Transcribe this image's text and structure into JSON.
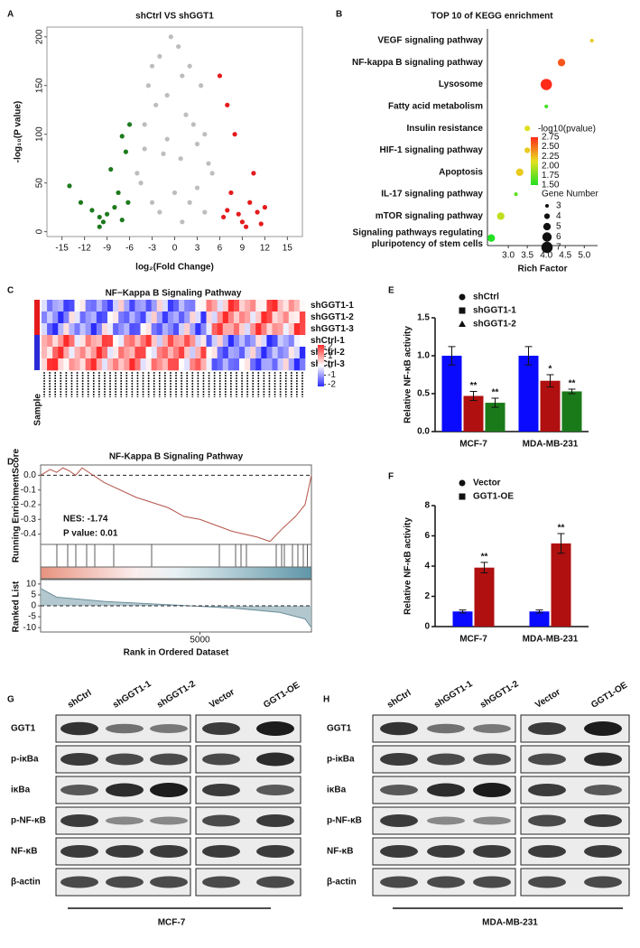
{
  "panel_labels": [
    "A",
    "B",
    "C",
    "D",
    "E",
    "F",
    "G",
    "H"
  ],
  "chart_data": [
    {
      "type": "scatter",
      "title": "shCtrl VS shGGT1",
      "x_label": "log₂(Fold Change)",
      "y_label": "-log₁₀(P value)",
      "xlim": [
        -17,
        17
      ],
      "ylim": [
        -5,
        210
      ],
      "xticks": [
        -15,
        -12,
        -9,
        -6,
        -3,
        0,
        3,
        6,
        9,
        12,
        15
      ],
      "yticks": [
        0,
        50,
        100,
        150,
        200
      ],
      "series": [
        {
          "color": "#1e7a1e",
          "x": [
            -14,
            -12.5,
            -11,
            -10,
            -9,
            -8.5,
            -8,
            -7,
            -6.5,
            -6,
            -10,
            -7.5,
            -9.5,
            -7,
            -6.2
          ],
          "y": [
            47,
            30,
            22,
            15,
            18,
            64,
            25,
            98,
            82,
            110,
            5,
            40,
            10,
            12,
            30
          ]
        },
        {
          "color": "#bdbdbd",
          "x": [
            -5,
            -4,
            -3.5,
            -3,
            -2.5,
            -2,
            -1,
            -0.5,
            0.5,
            1,
            1.5,
            2,
            2.5,
            3,
            3.5,
            4,
            5,
            -1.5,
            0,
            -4.5,
            4.5,
            2,
            -2,
            1,
            -3,
            -1,
            0.8,
            3,
            -4,
            4
          ],
          "y": [
            60,
            110,
            150,
            170,
            130,
            180,
            140,
            200,
            190,
            160,
            120,
            170,
            110,
            90,
            150,
            100,
            60,
            80,
            40,
            50,
            70,
            30,
            20,
            10,
            30,
            95,
            75,
            45,
            85,
            20
          ]
        },
        {
          "color": "#e41a1c",
          "x": [
            6,
            7,
            8,
            9,
            10,
            11,
            12,
            7.5,
            6.5,
            9.5,
            10.5,
            8.5,
            11.5,
            7
          ],
          "y": [
            160,
            130,
            100,
            10,
            30,
            20,
            25,
            40,
            15,
            5,
            60,
            18,
            8,
            22
          ]
        }
      ]
    },
    {
      "type": "dot",
      "title": "TOP 10 of KEGG enrichment",
      "x_label": "Rich Factor",
      "categories": [
        "VEGF signaling pathway",
        "NF-kappa B signaling pathway",
        "Lysosome",
        "Fatty acid metabolism",
        "Insulin resistance",
        "HIF-1 signaling pathway",
        "Apoptosis",
        "IL-17 signaling pathway",
        "mTOR signaling pathway",
        "Signaling pathways regulating\npluripotency of stem cells"
      ],
      "x": [
        5.2,
        4.4,
        4.0,
        4.0,
        3.5,
        3.5,
        3.3,
        3.2,
        2.8,
        2.55
      ],
      "gene_number": [
        3,
        5,
        7,
        3,
        4,
        4,
        5,
        3,
        5,
        5
      ],
      "neg_log10_p": [
        2.2,
        2.6,
        2.75,
        1.6,
        2.1,
        2.2,
        2.2,
        1.7,
        2.0,
        1.5
      ],
      "highlight_index": 1,
      "highlight_color": "#e41a1c",
      "xlim": [
        2.45,
        5.35
      ],
      "xticks": [
        {
          "value": 3,
          "label": "3.0"
        },
        3.5,
        {
          "value": 4,
          "label": "4.0"
        },
        4.5,
        {
          "value": 5,
          "label": "5.0"
        }
      ],
      "color_title": "-log10(pvalue)",
      "color_lim": [
        1.5,
        2.75
      ],
      "color_ticks": [
        2.75,
        {
          "value": 2.5,
          "label": "2.50"
        },
        2.25,
        {
          "value": 2,
          "label": "2.00"
        },
        1.75,
        {
          "value": 1.5,
          "label": "1.50"
        }
      ],
      "colormap": [
        "#22e022",
        "#e6e020",
        "#ff2a1a"
      ],
      "size_title": "Gene Number",
      "size_ticks": [
        3,
        4,
        5,
        6,
        7
      ]
    },
    {
      "type": "heatmap",
      "title": "NF−Kappa B Signaling Pathway",
      "rows": [
        "shGGT1-1",
        "shGGT1-2",
        "shGGT1-3",
        "shCtrl-1",
        "shCtrl-2",
        "shCtrl-3"
      ],
      "group_colors": [
        "#e41a1c",
        "#e41a1c",
        "#e41a1c",
        "#2b2bd6",
        "#2b2bd6",
        "#2b2bd6"
      ],
      "sample_label": "Sample",
      "color_ticks": [
        2,
        1,
        0,
        -1,
        -2
      ],
      "colormap": [
        "#2b2bff",
        "#ffffff",
        "#ff2b2b"
      ]
    },
    {
      "type": "gsea",
      "title": "NF-Kappa B Signaling Pathway",
      "y_label": "Running EnrichmentScore",
      "x_label": "Rank in Ordered Dataset",
      "ranked_label": "Ranked List",
      "nes_text": "NES: -1.74",
      "p_text": "P value: 0.01",
      "line_color": "#b5544a",
      "x": [
        0,
        300,
        500,
        700,
        900,
        1100,
        1300,
        2000,
        3000,
        4000,
        4500,
        5000,
        6000,
        6800,
        7200,
        7600,
        8000,
        8300,
        8500
      ],
      "es": [
        0,
        0.04,
        0.02,
        0.05,
        0.03,
        0,
        0.05,
        -0.05,
        -0.15,
        -0.22,
        -0.28,
        -0.3,
        -0.38,
        -0.42,
        -0.45,
        -0.36,
        -0.28,
        -0.2,
        0
      ],
      "xlim": [
        0,
        8500
      ],
      "xticks": [
        5000
      ],
      "ylim": [
        -0.47,
        0.07
      ],
      "yticks": [
        {
          "value": 0,
          "label": "0.0"
        },
        -0.1,
        -0.2,
        -0.3,
        -0.4
      ],
      "ranked_x": [
        0,
        500,
        2000,
        4000,
        6000,
        7500,
        8300,
        8500
      ],
      "ranked_y": [
        8,
        4,
        2,
        0.5,
        -1,
        -3,
        -6,
        -10
      ],
      "ranked_ylim": [
        -12,
        12
      ],
      "ranked_yticks": [
        10,
        5,
        0,
        -5,
        -10
      ]
    },
    {
      "type": "bar",
      "y_label": "Relative NF-κB activity",
      "categories": [
        "MCF-7",
        "MDA-MB-231"
      ],
      "ylim": [
        0,
        1.5
      ],
      "yticks": [
        {
          "value": 0,
          "label": "0.0"
        },
        0.5,
        {
          "value": 1,
          "label": "1.0"
        },
        1.5
      ],
      "series": [
        {
          "name": "shCtrl",
          "color": "#0a0aff",
          "marker": "circle",
          "values": [
            1,
            1
          ],
          "errors": [
            0.12,
            0.12
          ]
        },
        {
          "name": "shGGT1-1",
          "color": "#b01010",
          "marker": "square",
          "values": [
            0.47,
            0.67
          ],
          "errors": [
            0.06,
            0.08
          ],
          "annotations": [
            "**",
            "*"
          ]
        },
        {
          "name": "shGGT1-2",
          "color": "#1a7a1a",
          "marker": "triangle",
          "values": [
            0.38,
            0.53
          ],
          "errors": [
            0.06,
            0.03
          ],
          "annotations": [
            "**",
            "**"
          ]
        }
      ]
    },
    {
      "type": "bar",
      "y_label": "Relative NF-κB activity",
      "categories": [
        "MCF-7",
        "MDA-MB-231"
      ],
      "ylim": [
        0,
        8
      ],
      "yticks": [
        0,
        2,
        4,
        6,
        8
      ],
      "series": [
        {
          "name": "Vector",
          "color": "#0a0aff",
          "marker": "circle",
          "values": [
            1,
            1
          ],
          "errors": [
            0.1,
            0.1
          ]
        },
        {
          "name": "GGT1-OE",
          "color": "#b01010",
          "marker": "square",
          "values": [
            3.9,
            5.5
          ],
          "errors": [
            0.35,
            0.65
          ],
          "annotations": [
            "**",
            "**"
          ]
        }
      ]
    }
  ],
  "blots": [
    {
      "lanes": [
        "shCtrl",
        "shGGT1-1",
        "shGGT1-2",
        "Vector",
        "GGT1-OE"
      ],
      "rows": [
        "GGT1",
        "p-iκBa",
        "iκBa",
        "p-NF-κB",
        "NF-κB",
        "β-actin"
      ],
      "cell_line": "MCF-7"
    },
    {
      "lanes": [
        "shCtrl",
        "shGGT1-1",
        "shGGT1-2",
        "Vector",
        "GGT1-OE"
      ],
      "rows": [
        "GGT1",
        "p-iκBa",
        "iκBa",
        "p-NF-κB",
        "NF-κB",
        "β-actin"
      ],
      "cell_line": "MDA-MB-231"
    }
  ]
}
